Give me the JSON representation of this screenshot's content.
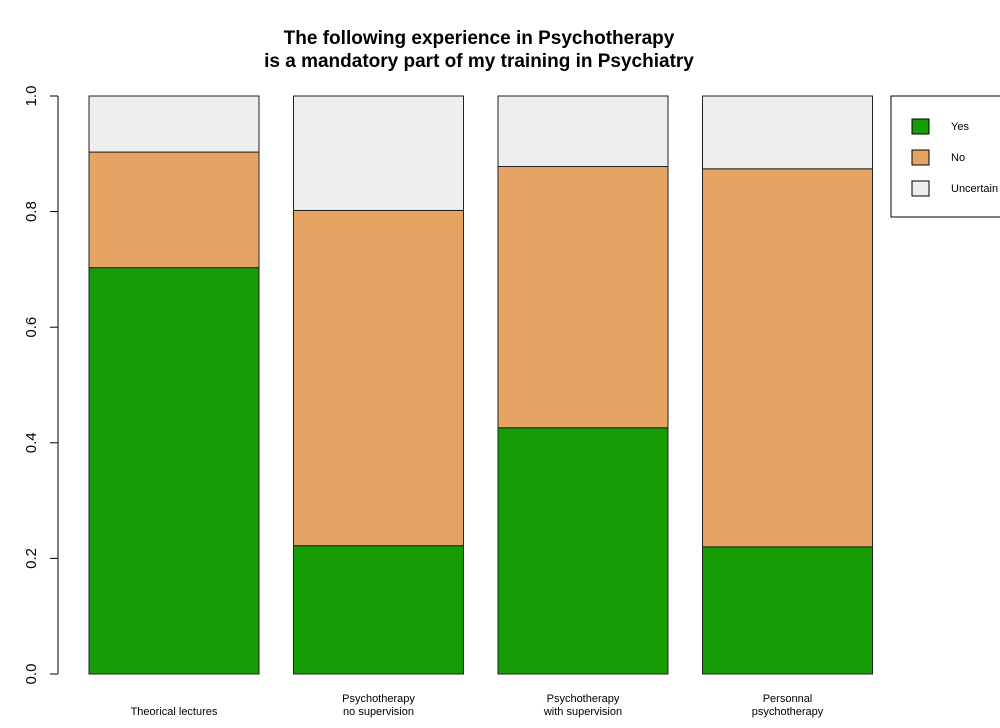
{
  "chart_data": {
    "type": "bar",
    "stacked": true,
    "title": [
      "The following experience in Psychotherapy",
      "is a mandatory part of my training in Psychiatry"
    ],
    "xlabel": "",
    "ylabel": "",
    "ylim": [
      0,
      1
    ],
    "yticks": [
      "0.0",
      "0.2",
      "0.4",
      "0.6",
      "0.8",
      "1.0"
    ],
    "categories": [
      [
        "Theorical lectures"
      ],
      [
        "Psychotherapy",
        "no supervision"
      ],
      [
        "Psychotherapy",
        "with supervision"
      ],
      [
        "Personnal",
        "psychotherapy"
      ]
    ],
    "series": [
      {
        "name": "Yes",
        "color": "#169c04",
        "values": [
          0.703,
          0.222,
          0.426,
          0.22
        ]
      },
      {
        "name": "No",
        "color": "#e6a464",
        "values": [
          0.2,
          0.58,
          0.452,
          0.654
        ]
      },
      {
        "name": "Uncertain",
        "color": "#eeeeee",
        "values": [
          0.097,
          0.198,
          0.122,
          0.126
        ]
      }
    ],
    "legend_position": "top-right",
    "grid": false
  }
}
